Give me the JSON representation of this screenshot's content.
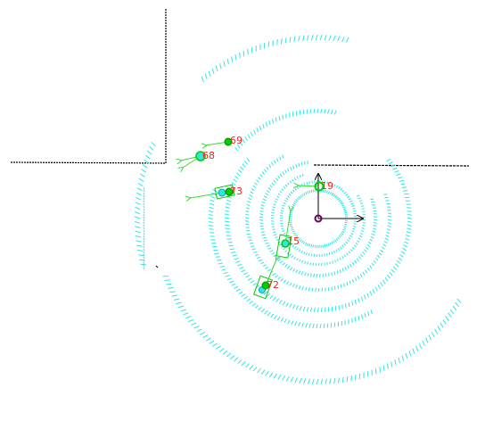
{
  "colors": {
    "background": "#ffffff",
    "scan": "#2ee6e6",
    "wall": "#000000",
    "track": "#00cc00",
    "track_arrow": "#33dd33",
    "label": "#ff2020",
    "frame_origin": "#660066",
    "frame_axis": "#000000"
  },
  "robot": {
    "name": "robot-frame",
    "axes": [
      "x",
      "y"
    ]
  },
  "tracks": [
    {
      "id": "69",
      "label": "69"
    },
    {
      "id": "68",
      "label": "68"
    },
    {
      "id": "73",
      "label": "73"
    },
    {
      "id": "19",
      "label": "19"
    },
    {
      "id": "15",
      "label": "15"
    },
    {
      "id": "72",
      "label": "72"
    }
  ]
}
